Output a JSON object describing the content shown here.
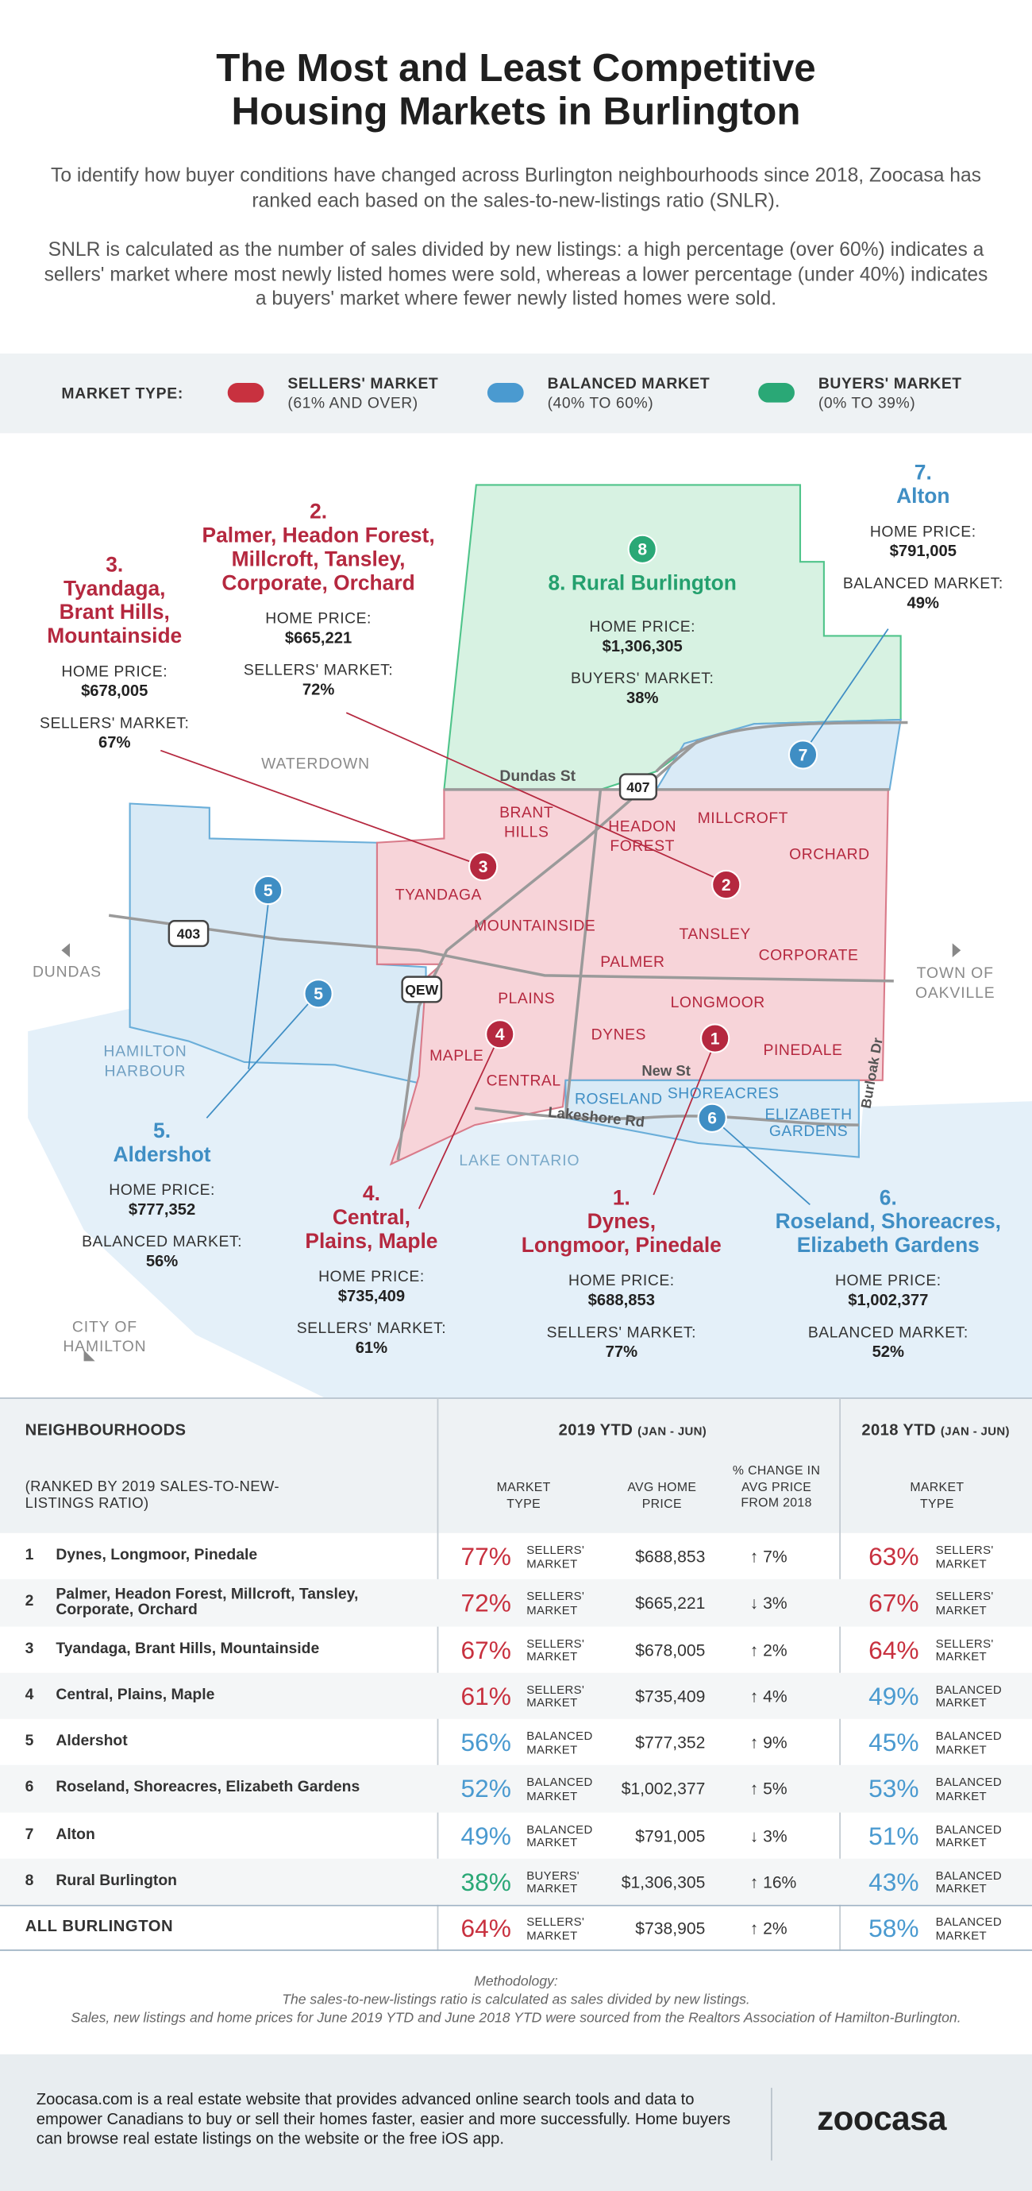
{
  "header": {
    "title": [
      "The Most and Least Competitive",
      "Housing Markets in Burlington"
    ],
    "intro": [
      "To identify how buyer conditions have changed across Burlington neighbourhoods since 2018, Zoocasa has ranked each based on the sales-to-new-listings ratio (SNLR).",
      "SNLR is calculated as the number of sales divided by new listings: a high percentage (over 60%) indicates a sellers' market where most newly listed homes were sold, whereas a lower percentage (under 40%) indicates a buyers' market where fewer newly listed homes were sold."
    ]
  },
  "legend": {
    "label": "MARKET TYPE:",
    "items": [
      {
        "name": "SELLERS' MARKET",
        "range": "(61% AND OVER)",
        "color": "#c8313f"
      },
      {
        "name": "BALANCED MARKET",
        "range": "(40% TO 60%)",
        "color": "#4a9ad0"
      },
      {
        "name": "BUYERS' MARKET",
        "range": "(0% TO 39%)",
        "color": "#2aa876"
      }
    ]
  },
  "map": {
    "places": [
      "WATERDOWN",
      "Dundas St",
      "DUNDAS",
      "TOWN OF",
      "OAKVILLE",
      "HAMILTON",
      "HARBOUR",
      "New St",
      "Lakeshore Rd",
      "Burloak Dr",
      "LAKE ONTARIO",
      "CITY OF",
      "HAMILTON"
    ],
    "shields": [
      "407",
      "403",
      "QEW"
    ],
    "neighbourhoods": [
      "BRANT",
      "HILLS",
      "MILLCROFT",
      "HEADON",
      "FOREST",
      "ORCHARD",
      "TYANDAGA",
      "MOUNTAINSIDE",
      "TANSLEY",
      "PALMER",
      "CORPORATE",
      "PLAINS",
      "LONGMOOR",
      "DYNES",
      "PINEDALE",
      "MAPLE",
      "CENTRAL",
      "ROSELAND",
      "SHOREACRES",
      "ELIZABETH",
      "GARDENS"
    ],
    "markers": [
      "8",
      "7",
      "3",
      "2",
      "5",
      "5",
      "4",
      "1",
      "6"
    ],
    "callouts": [
      {
        "number": "1.",
        "name": [
          "Dynes,",
          "Longmoor, Pinedale"
        ],
        "price_label": "HOME PRICE:",
        "price": "$688,853",
        "market_label": "SELLERS' MARKET:",
        "ratio": "77%",
        "color": "#b5283f"
      },
      {
        "number": "2.",
        "name": [
          "Palmer, Headon Forest,",
          "Millcroft, Tansley,",
          "Corporate, Orchard"
        ],
        "price_label": "HOME PRICE:",
        "price": "$665,221",
        "market_label": "SELLERS' MARKET:",
        "ratio": "72%",
        "color": "#b5283f"
      },
      {
        "number": "3.",
        "name": [
          "Tyandaga,",
          "Brant Hills,",
          "Mountainside"
        ],
        "price_label": "HOME PRICE:",
        "price": "$678,005",
        "market_label": "SELLERS' MARKET:",
        "ratio": "67%",
        "color": "#b5283f"
      },
      {
        "number": "4.",
        "name": [
          "Central,",
          "Plains, Maple"
        ],
        "price_label": "HOME PRICE:",
        "price": "$735,409",
        "market_label": "SELLERS' MARKET:",
        "ratio": "61%",
        "color": "#b5283f"
      },
      {
        "number": "5.",
        "name": [
          "Aldershot"
        ],
        "price_label": "HOME PRICE:",
        "price": "$777,352",
        "market_label": "BALANCED MARKET:",
        "ratio": "56%",
        "color": "#3f8ec4"
      },
      {
        "number": "6.",
        "name": [
          "Roseland, Shoreacres,",
          "Elizabeth Gardens"
        ],
        "price_label": "HOME PRICE:",
        "price": "$1,002,377",
        "market_label": "BALANCED MARKET:",
        "ratio": "52%",
        "color": "#3f8ec4"
      },
      {
        "number": "7.",
        "name": [
          "Alton"
        ],
        "price_label": "HOME PRICE:",
        "price": "$791,005",
        "market_label": "BALANCED MARKET:",
        "ratio": "49%",
        "color": "#3f8ec4"
      },
      {
        "number": "8.",
        "name": [
          "Rural Burlington"
        ],
        "price_label": "HOME PRICE:",
        "price": "$1,306,305",
        "market_label": "BUYERS' MARKET:",
        "ratio": "38%",
        "color": "#24a06e"
      }
    ]
  },
  "table": {
    "header": {
      "neighbourhoods": "NEIGHBOURHOODS",
      "ranked": "(RANKED BY 2019 SALES-TO-NEW-LISTINGS RATIO)",
      "year_2019": "2019 YTD",
      "period_2019": "(JAN - JUN)",
      "year_2018": "2018 YTD",
      "period_2018": "(JAN - JUN)",
      "market_type_2019": "MARKET TYPE",
      "avg_price": "AVG HOME PRICE",
      "change": "% CHANGE IN AVG PRICE FROM 2018",
      "market_type_2018": "MARKET TYPE"
    },
    "rows": [
      [
        "1",
        "Dynes, Longmoor, Pinedale",
        "77%",
        "SELLERS' MARKET",
        "$688,853",
        "↑ 7%",
        "63%",
        "SELLERS' MARKET"
      ],
      [
        "2",
        "Palmer, Headon Forest, Millcroft, Tansley, Corporate, Orchard",
        "72%",
        "SELLERS' MARKET",
        "$665,221",
        "↓ 3%",
        "67%",
        "SELLERS' MARKET"
      ],
      [
        "3",
        "Tyandaga, Brant Hills, Mountainside",
        "67%",
        "SELLERS' MARKET",
        "$678,005",
        "↑ 2%",
        "64%",
        "SELLERS' MARKET"
      ],
      [
        "4",
        "Central, Plains, Maple",
        "61%",
        "SELLERS' MARKET",
        "$735,409",
        "↑ 4%",
        "49%",
        "BALANCED MARKET"
      ],
      [
        "5",
        "Aldershot",
        "56%",
        "BALANCED MARKET",
        "$777,352",
        "↑ 9%",
        "45%",
        "BALANCED MARKET"
      ],
      [
        "6",
        "Roseland, Shoreacres, Elizabeth Gardens",
        "52%",
        "BALANCED MARKET",
        "$1,002,377",
        "↑ 5%",
        "53%",
        "BALANCED MARKET"
      ],
      [
        "7",
        "Alton",
        "49%",
        "BALANCED MARKET",
        "$791,005",
        "↓ 3%",
        "51%",
        "BALANCED MARKET"
      ],
      [
        "8",
        "Rural Burlington",
        "38%",
        "BUYERS' MARKET",
        "$1,306,305",
        "↑ 16%",
        "43%",
        "BALANCED MARKET"
      ]
    ],
    "total": [
      "ALL BURLINGTON",
      "64%",
      "SELLERS' MARKET",
      "$738,905",
      "↑ 2%",
      "58%",
      "BALANCED MARKET"
    ]
  },
  "methodology": {
    "title": "Methodology:",
    "lines": [
      "The sales-to-new-listings ratio is calculated as sales divided by new listings.",
      "Sales, new listings and home prices for June 2019 YTD and June 2018 YTD were sourced from the Realtors Association of Hamilton-Burlington."
    ]
  },
  "footer": {
    "text": "Zoocasa.com is a real estate website that provides advanced online search tools and data to empower Canadians to buy or sell their homes faster, easier and more successfully. Home buyers can browse real estate listings on the website or the free iOS app.",
    "logo": "zoocasa"
  }
}
